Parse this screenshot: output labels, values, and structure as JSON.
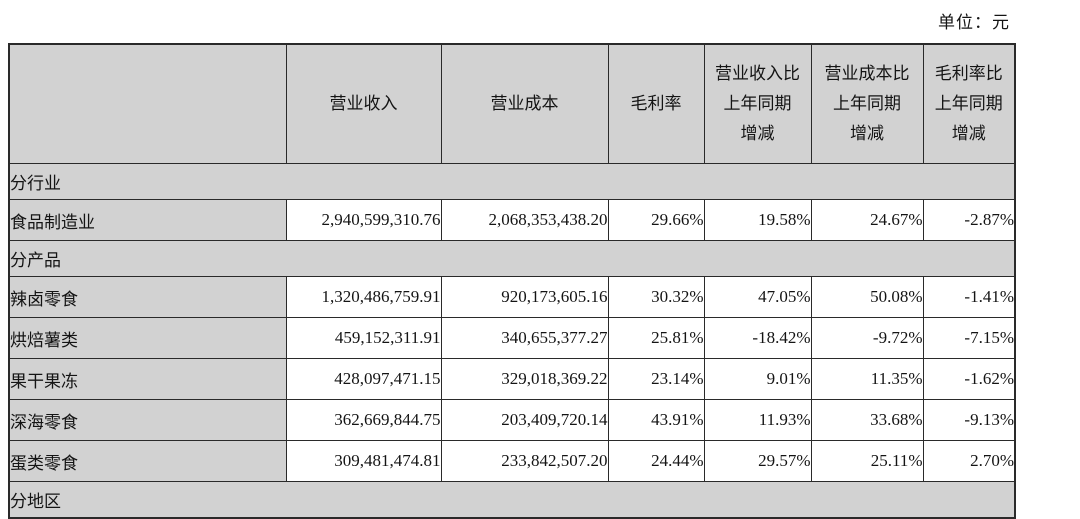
{
  "unit": {
    "label": "单位：元"
  },
  "colors": {
    "band_gray": "#d2d2d2",
    "border": "#2a2a2a",
    "text": "#141414"
  },
  "table": {
    "columns": [
      "",
      "营业收入",
      "营业成本",
      "毛利率",
      "营业收入比\n上年同期\n增减",
      "营业成本比\n上年同期\n增减",
      "毛利率比\n上年同期\n增减"
    ],
    "rows": [
      {
        "type": "section",
        "label": "分行业"
      },
      {
        "type": "data",
        "label": "食品制造业",
        "revenue": "2,940,599,310.76",
        "cost": "2,068,353,438.20",
        "margin": "29.66%",
        "revenue_yoy": "19.58%",
        "cost_yoy": "24.67%",
        "margin_yoy": "-2.87%"
      },
      {
        "type": "section",
        "label": "分产品"
      },
      {
        "type": "data",
        "label": "辣卤零食",
        "revenue": "1,320,486,759.91",
        "cost": "920,173,605.16",
        "margin": "30.32%",
        "revenue_yoy": "47.05%",
        "cost_yoy": "50.08%",
        "margin_yoy": "-1.41%"
      },
      {
        "type": "data",
        "label": "烘焙薯类",
        "revenue": "459,152,311.91",
        "cost": "340,655,377.27",
        "margin": "25.81%",
        "revenue_yoy": "-18.42%",
        "cost_yoy": "-9.72%",
        "margin_yoy": "-7.15%"
      },
      {
        "type": "data",
        "label": "果干果冻",
        "revenue": "428,097,471.15",
        "cost": "329,018,369.22",
        "margin": "23.14%",
        "revenue_yoy": "9.01%",
        "cost_yoy": "11.35%",
        "margin_yoy": "-1.62%"
      },
      {
        "type": "data",
        "label": "深海零食",
        "revenue": "362,669,844.75",
        "cost": "203,409,720.14",
        "margin": "43.91%",
        "revenue_yoy": "11.93%",
        "cost_yoy": "33.68%",
        "margin_yoy": "-9.13%"
      },
      {
        "type": "data",
        "label": "蛋类零食",
        "revenue": "309,481,474.81",
        "cost": "233,842,507.20",
        "margin": "24.44%",
        "revenue_yoy": "29.57%",
        "cost_yoy": "25.11%",
        "margin_yoy": "2.70%"
      },
      {
        "type": "section",
        "label": "分地区"
      }
    ]
  }
}
